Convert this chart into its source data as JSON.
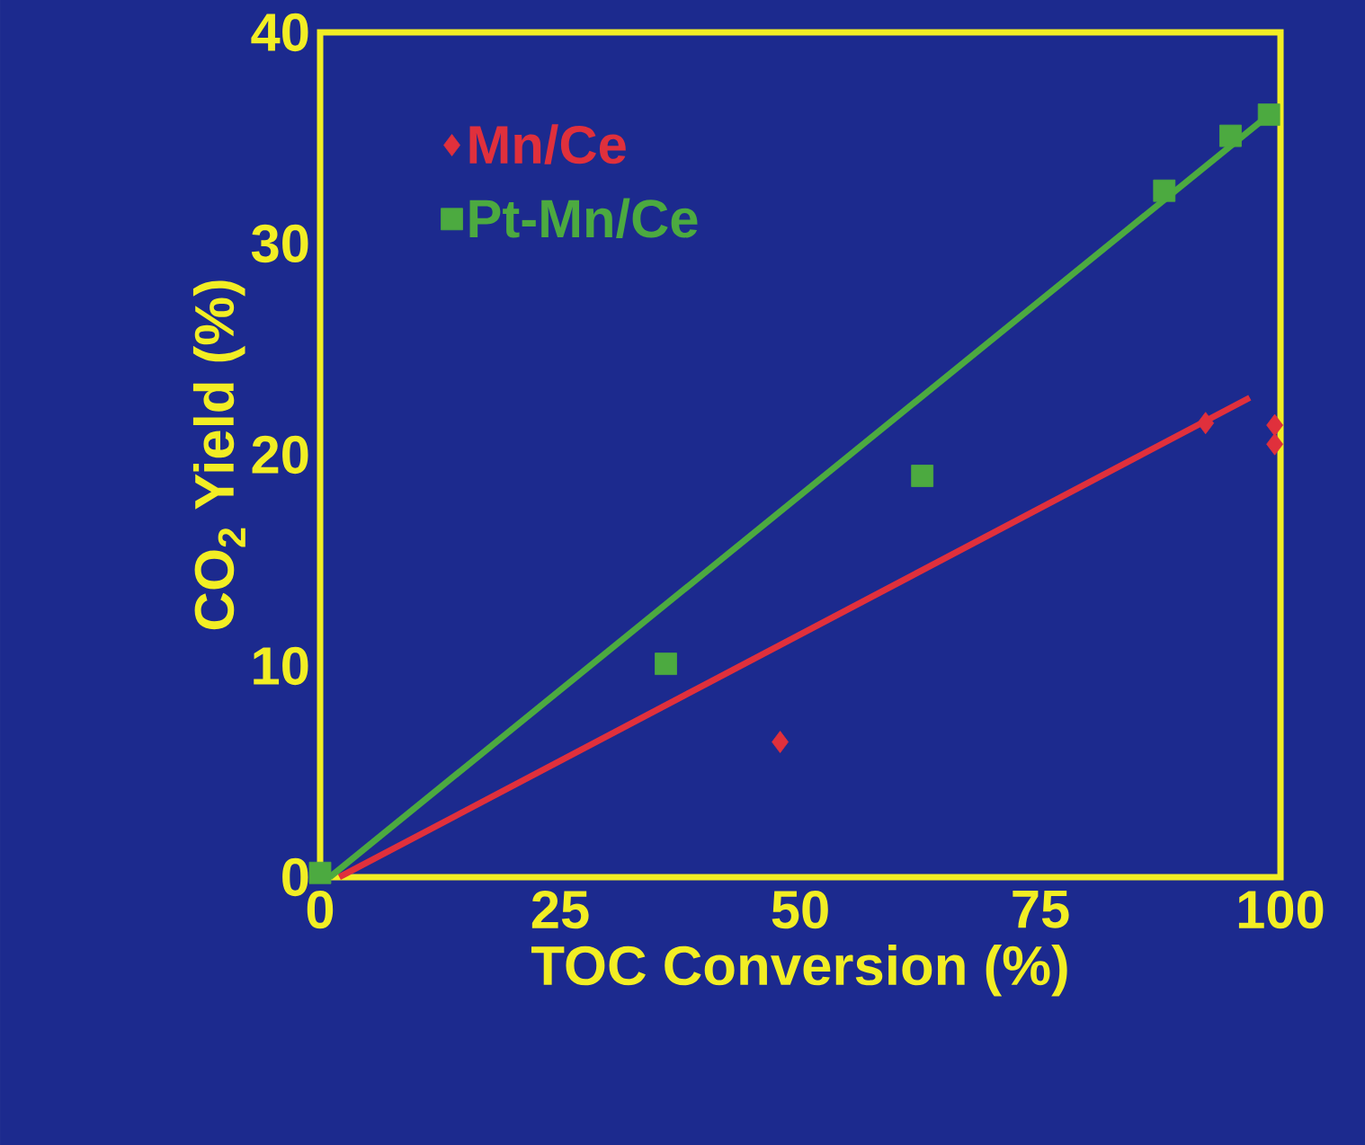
{
  "chart_data": {
    "type": "scatter",
    "xlabel": "TOC Conversion (%)",
    "ylabel": "CO$_{2}$ Yield (%)",
    "xlim": [
      0,
      100
    ],
    "ylim": [
      0,
      40
    ],
    "xticks": [
      0,
      25,
      50,
      75,
      100
    ],
    "yticks": [
      0,
      10,
      20,
      30,
      40
    ],
    "grid": false,
    "legend": "top left",
    "series": [
      {
        "name": "Mn/Ce",
        "marker": "diamond",
        "color": "#e0303c",
        "x": [
          47.9,
          92.2,
          99.4,
          99.4
        ],
        "values": [
          6.4,
          21.5,
          21.4,
          20.5
        ]
      },
      {
        "name": "Pt-Mn/Ce",
        "marker": "square",
        "color": "#4caa40",
        "x": [
          0,
          36,
          62.7,
          87.9,
          94.8,
          98.8
        ],
        "values": [
          0.2,
          10.1,
          19,
          32.5,
          35.1,
          36.1
        ]
      },
      {
        "type": "line",
        "color": "#e0303c",
        "x": [
          2,
          96.8
        ],
        "values": [
          0,
          22.7
        ]
      },
      {
        "type": "line",
        "color": "#4caa40",
        "x": [
          1,
          98
        ],
        "values": [
          0,
          35.8
        ]
      }
    ]
  }
}
